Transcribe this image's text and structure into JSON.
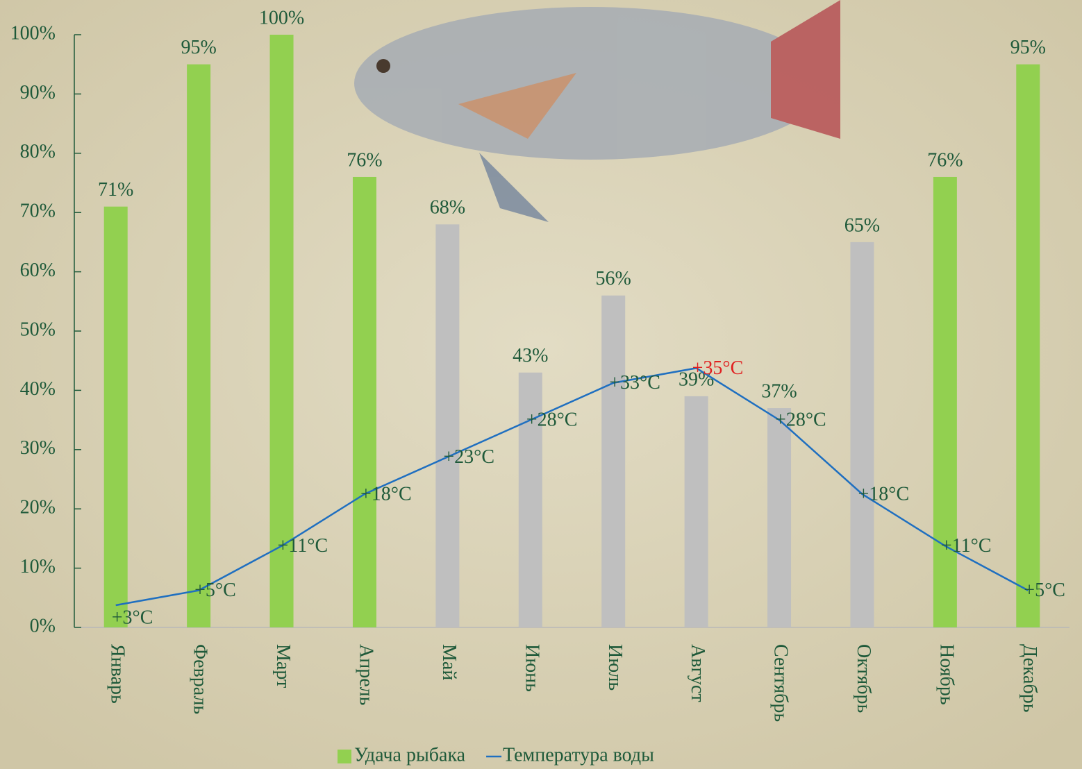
{
  "chart_data": {
    "type": "bar",
    "categories": [
      "Январь",
      "Февраль",
      "Март",
      "Апрель",
      "Май",
      "Июнь",
      "Июль",
      "Август",
      "Сентябрь",
      "Октябрь",
      "Ноябрь",
      "Декабрь"
    ],
    "series": [
      {
        "name": "Удача рыбака",
        "type": "bar",
        "color": "#92d050",
        "colors": [
          "#92d050",
          "#92d050",
          "#92d050",
          "#92d050",
          "#bfbfbf",
          "#bfbfbf",
          "#bfbfbf",
          "#bfbfbf",
          "#bfbfbf",
          "#bfbfbf",
          "#92d050",
          "#92d050"
        ],
        "values": [
          71,
          95,
          100,
          76,
          68,
          43,
          56,
          39,
          37,
          65,
          76,
          95
        ],
        "value_labels": [
          "71%",
          "95%",
          "100%",
          "76%",
          "68%",
          "43%",
          "56%",
          "39%",
          "37%",
          "65%",
          "76%",
          "95%"
        ]
      },
      {
        "name": "Температура воды",
        "type": "line",
        "axis": "y2",
        "color": "#1f6fc0",
        "values": [
          3,
          5,
          11,
          18,
          23,
          28,
          33,
          35,
          28,
          18,
          11,
          5
        ],
        "value_labels": [
          "+3°C",
          "+5°C",
          "+11°C",
          "+18°C",
          "+23°C",
          "+28°C",
          "+33°C",
          "+35°C",
          "+28°C",
          "+18°C",
          "+11°C",
          "+5°C"
        ],
        "value_label_colors": [
          "#1f5a3a",
          "#1f5a3a",
          "#1f5a3a",
          "#1f5a3a",
          "#1f5a3a",
          "#1f5a3a",
          "#1f5a3a",
          "#e02020",
          "#1f5a3a",
          "#1f5a3a",
          "#1f5a3a",
          "#1f5a3a"
        ]
      }
    ],
    "ylim": [
      0,
      100
    ],
    "yticks": [
      {
        "value": 0,
        "label": "0%"
      },
      {
        "value": 10,
        "label": "10%"
      },
      {
        "value": 20,
        "label": "20%"
      },
      {
        "value": 30,
        "label": "30%"
      },
      {
        "value": 40,
        "label": "40%"
      },
      {
        "value": 50,
        "label": "50%"
      },
      {
        "value": 60,
        "label": "60%"
      },
      {
        "value": 70,
        "label": "70%"
      },
      {
        "value": 80,
        "label": "80%"
      },
      {
        "value": 90,
        "label": "90%"
      },
      {
        "value": 100,
        "label": "100%"
      }
    ],
    "y2lim": [
      0,
      80
    ],
    "legend": "bottom"
  }
}
